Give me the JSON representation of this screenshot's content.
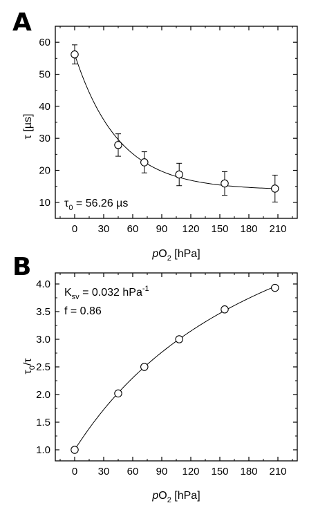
{
  "chart_data": [
    {
      "type": "scatter",
      "panel_label": "A",
      "x": [
        0,
        45,
        72,
        108,
        155,
        207
      ],
      "y": [
        56.2,
        27.9,
        22.5,
        18.7,
        15.9,
        14.3
      ],
      "y_error": [
        3.0,
        3.5,
        3.3,
        3.5,
        3.7,
        4.2
      ],
      "xlim": [
        -20,
        230
      ],
      "ylim": [
        5,
        65
      ],
      "x_ticks": [
        0,
        30,
        60,
        90,
        120,
        150,
        180,
        210
      ],
      "y_ticks": [
        10,
        20,
        30,
        40,
        50,
        60
      ],
      "ylabel": "τ [µs]",
      "xlabel": "pO2 [hPa]",
      "annotation": "τ0 = 56.26 µs",
      "fit": {
        "model": "exponential decay",
        "tau0": 56.26
      },
      "grid": false,
      "marker": "open-circle"
    },
    {
      "type": "scatter",
      "panel_label": "B",
      "x": [
        0,
        45,
        72,
        108,
        155,
        207
      ],
      "y": [
        1.0,
        2.02,
        2.5,
        3.0,
        3.54,
        3.93
      ],
      "xlim": [
        -20,
        230
      ],
      "ylim": [
        0.8,
        4.2
      ],
      "x_ticks": [
        0,
        30,
        60,
        90,
        120,
        150,
        180,
        210
      ],
      "y_ticks": [
        1.0,
        1.5,
        2.0,
        2.5,
        3.0,
        3.5,
        4.0
      ],
      "ylabel": "τ0/τ",
      "xlabel": "pO2 [hPa]",
      "annotations": [
        "Ksv = 0.032 hPa-1",
        "f = 0.86"
      ],
      "fit": {
        "model": "two-site Stern-Volmer",
        "Ksv": 0.032,
        "f": 0.86
      },
      "grid": false,
      "marker": "open-circle"
    }
  ],
  "labels": {
    "panel_a": "A",
    "panel_b": "B",
    "xlabel_italic": "p",
    "xlabel_main": "O",
    "xlabel_sub": "2",
    "xlabel_unit": " [hPa]",
    "a_ylabel": "τ [µs]",
    "a_annot_main": "τ",
    "a_annot_sub": "0",
    "a_annot_rest": " = 56.26 µs",
    "b_ylabel_tau": "τ",
    "b_ylabel_sub": "0",
    "b_ylabel_rest": "/τ",
    "b_ksv_main": "K",
    "b_ksv_sub": "sv",
    "b_ksv_rest": " = 0.032 hPa",
    "b_ksv_sup": "-1",
    "b_f": "f = 0.86"
  }
}
